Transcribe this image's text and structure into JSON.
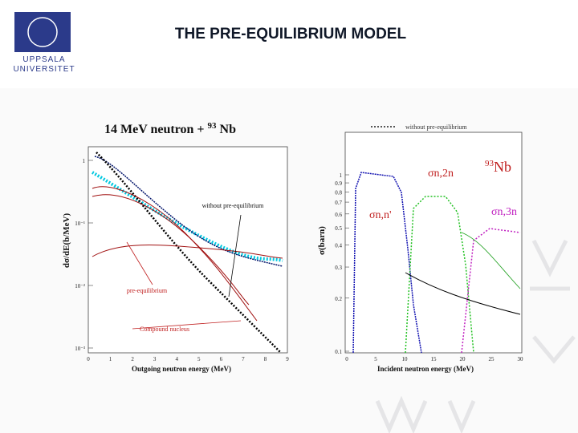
{
  "header": {
    "title": "THE PRE-EQUILIBRIUM MODEL",
    "logo_line1": "UPPSALA",
    "logo_line2": "UNIVERSITET"
  },
  "left_figure": {
    "title": "14 MeV neutron + ",
    "title_sup": "93",
    "title_end": " Nb",
    "y_label": "dσ/dE(b/MeV)",
    "x_label": "Outgoing neutron energy (MeV)",
    "annotation_without": "without pre-equilibrium",
    "annotation_pre": "pre-equilibrium",
    "annotation_compound": "Compound nucleus",
    "x_ticks": [
      "0",
      "1",
      "2",
      "3",
      "4",
      "5",
      "6",
      "7",
      "8",
      "9"
    ],
    "y_ticks": [
      "1",
      "10⁻¹",
      "10⁻²",
      "10⁻³"
    ]
  },
  "right_figure": {
    "legend": "without pre-equilibrium",
    "nucleus_sup": "93",
    "nucleus": "Nb",
    "label_n2n": "σn,2n",
    "label_nn": "σn,n'",
    "label_n3n": "σn,3n",
    "y_label": "σ(barn)",
    "x_label": "Incident neutron energy (MeV)",
    "x_ticks": [
      "0",
      "5",
      "10",
      "15",
      "20",
      "25",
      "30"
    ],
    "y_ticks": [
      "0.1",
      "0.2",
      "0.3",
      "0.4",
      "0.5",
      "0.6",
      "0.7",
      "0.8",
      "0.9",
      "1"
    ]
  }
}
